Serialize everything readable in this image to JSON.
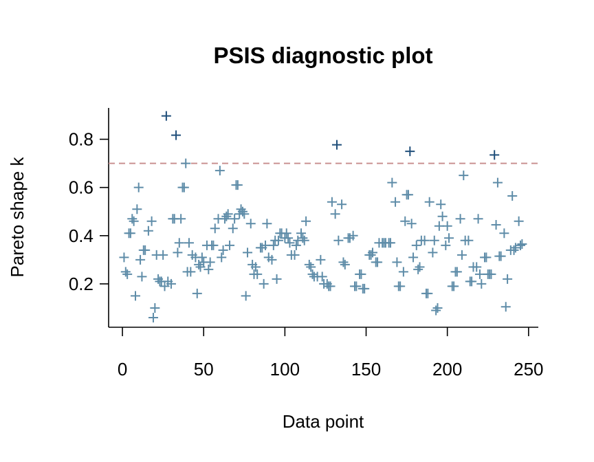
{
  "chart_data": {
    "type": "scatter",
    "title": "PSIS diagnostic plot",
    "xlabel": "Data point",
    "ylabel": "Pareto shape k",
    "xlim": [
      -8.5,
      256
    ],
    "ylim": [
      0.02,
      0.93
    ],
    "xticks": [
      0,
      50,
      100,
      150,
      200,
      250
    ],
    "yticks": [
      0.2,
      0.4,
      0.6,
      0.8
    ],
    "hline": {
      "value": 0.7,
      "color": "#c99090"
    },
    "series": [
      {
        "color": "#5e8ca8",
        "x": [
          1,
          2,
          3,
          4,
          5,
          6,
          7,
          8,
          9,
          10,
          11,
          12,
          13,
          14,
          16,
          18,
          19,
          20,
          21,
          22,
          23,
          24,
          25,
          26,
          28,
          30,
          31,
          32,
          34,
          35,
          36,
          37,
          38,
          39,
          40,
          41,
          42,
          43,
          45,
          46,
          47,
          48,
          49,
          50,
          52,
          53,
          54,
          55,
          56,
          57,
          59,
          60,
          61,
          62,
          63,
          64,
          65,
          66,
          68,
          69,
          70,
          71,
          72,
          73,
          74,
          75,
          76,
          77,
          79,
          80,
          81,
          82,
          83,
          85,
          86,
          87,
          88,
          89,
          90,
          92,
          93,
          94,
          95,
          96,
          97,
          98,
          100,
          101,
          102,
          103,
          104,
          106,
          107,
          108,
          110,
          111,
          112,
          113,
          115,
          116,
          117,
          118,
          120,
          122,
          123,
          124,
          126,
          127,
          128,
          129,
          131,
          133,
          135,
          136,
          137,
          139,
          140,
          142,
          143,
          144,
          146,
          147,
          148,
          149,
          152,
          153,
          154,
          156,
          157,
          158,
          160,
          161,
          162,
          164,
          165,
          166,
          168,
          169,
          170,
          171,
          173,
          174,
          175,
          176,
          178,
          179,
          181,
          182,
          183,
          184,
          186,
          187,
          188,
          189,
          191,
          192,
          193,
          194,
          195,
          196,
          197,
          199,
          200,
          201,
          203,
          204,
          205,
          206,
          208,
          209,
          210,
          211,
          213,
          214,
          215,
          216,
          218,
          219,
          220,
          221,
          223,
          224,
          225,
          226,
          227,
          230,
          231,
          232,
          233,
          235,
          236,
          237,
          239,
          240,
          241,
          242,
          244,
          245,
          246
        ],
        "values": [
          0.31,
          0.25,
          0.24,
          0.41,
          0.41,
          0.47,
          0.46,
          0.15,
          0.51,
          0.6,
          0.3,
          0.23,
          0.34,
          0.34,
          0.42,
          0.46,
          0.06,
          0.1,
          0.32,
          0.22,
          0.21,
          0.21,
          0.32,
          0.19,
          0.21,
          0.2,
          0.47,
          0.47,
          0.33,
          0.37,
          0.47,
          0.6,
          0.6,
          0.7,
          0.25,
          0.37,
          0.25,
          0.32,
          0.31,
          0.16,
          0.28,
          0.27,
          0.31,
          0.29,
          0.36,
          0.26,
          0.29,
          0.36,
          0.36,
          0.43,
          0.47,
          0.67,
          0.31,
          0.34,
          0.47,
          0.48,
          0.49,
          0.36,
          0.43,
          0.47,
          0.61,
          0.61,
          0.49,
          0.51,
          0.5,
          0.49,
          0.15,
          0.33,
          0.45,
          0.28,
          0.24,
          0.27,
          0.24,
          0.35,
          0.35,
          0.2,
          0.36,
          0.45,
          0.31,
          0.3,
          0.36,
          0.38,
          0.22,
          0.38,
          0.41,
          0.41,
          0.39,
          0.41,
          0.39,
          0.37,
          0.32,
          0.32,
          0.36,
          0.38,
          0.41,
          0.39,
          0.38,
          0.46,
          0.28,
          0.27,
          0.24,
          0.23,
          0.23,
          0.3,
          0.23,
          0.2,
          0.2,
          0.19,
          0.19,
          0.54,
          0.49,
          0.38,
          0.53,
          0.29,
          0.28,
          0.39,
          0.39,
          0.4,
          0.19,
          0.19,
          0.24,
          0.24,
          0.18,
          0.18,
          0.32,
          0.32,
          0.33,
          0.29,
          0.29,
          0.37,
          0.37,
          0.37,
          0.37,
          0.37,
          0.37,
          0.62,
          0.54,
          0.29,
          0.19,
          0.19,
          0.25,
          0.46,
          0.57,
          0.57,
          0.45,
          0.31,
          0.36,
          0.26,
          0.27,
          0.38,
          0.38,
          0.16,
          0.16,
          0.54,
          0.33,
          0.38,
          0.09,
          0.1,
          0.44,
          0.53,
          0.48,
          0.36,
          0.44,
          0.39,
          0.19,
          0.19,
          0.25,
          0.25,
          0.47,
          0.32,
          0.65,
          0.38,
          0.38,
          0.21,
          0.21,
          0.27,
          0.27,
          0.47,
          0.24,
          0.2,
          0.31,
          0.31,
          0.24,
          0.24,
          0.24,
          0.445,
          0.62,
          0.315,
          0.315,
          0.41,
          0.105,
          0.22,
          0.34,
          0.565,
          0.34,
          0.35,
          0.46,
          0.36,
          0.365
        ]
      },
      {
        "color": "#1f4e7a",
        "x": [
          27,
          33,
          132,
          177,
          229
        ],
        "values": [
          0.897,
          0.817,
          0.777,
          0.75,
          0.735
        ]
      }
    ]
  }
}
